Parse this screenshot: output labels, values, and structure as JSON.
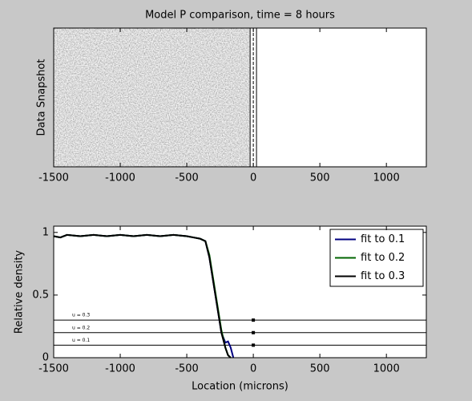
{
  "chart_data": [
    {
      "type": "image",
      "title": "Model P comparison, time = 8 hours",
      "ylabel": "Data Snapshot",
      "xlim": [
        -1500,
        1300
      ],
      "xticks": [
        -1500,
        -1000,
        -500,
        0,
        500,
        1000
      ],
      "vlines": [
        -24,
        0,
        24
      ]
    },
    {
      "type": "line",
      "ylabel": "Relative density",
      "xlabel": "Location (microns)",
      "xlim": [
        -1500,
        1300
      ],
      "xticks": [
        -1500,
        -1000,
        -500,
        0,
        500,
        1000
      ],
      "ylim": [
        0,
        1.05
      ],
      "yticks": [
        0,
        0.5,
        1
      ],
      "legend": "upper right",
      "x": [
        -1500,
        -1450,
        -1400,
        -1300,
        -1200,
        -1100,
        -1000,
        -900,
        -800,
        -700,
        -600,
        -500,
        -450,
        -400,
        -360,
        -330,
        -300,
        -270,
        -240,
        -210,
        -190,
        -170,
        -150,
        -130
      ],
      "series": [
        {
          "name": "fit to 0.1",
          "color": "#000080",
          "values": [
            0.97,
            0.96,
            0.98,
            0.97,
            0.98,
            0.97,
            0.98,
            0.97,
            0.98,
            0.97,
            0.98,
            0.97,
            0.96,
            0.95,
            0.93,
            0.8,
            0.6,
            0.4,
            0.2,
            0.12,
            0.13,
            0.08,
            0,
            null
          ]
        },
        {
          "name": "fit to 0.2",
          "color": "#006400",
          "values": [
            0.97,
            0.96,
            0.98,
            0.97,
            0.98,
            0.97,
            0.98,
            0.97,
            0.98,
            0.97,
            0.98,
            0.97,
            0.96,
            0.95,
            0.93,
            0.82,
            0.62,
            0.42,
            0.22,
            0.08,
            0.02,
            0,
            null,
            null
          ]
        },
        {
          "name": "fit to 0.3",
          "color": "#000000",
          "values": [
            0.97,
            0.96,
            0.98,
            0.97,
            0.98,
            0.97,
            0.98,
            0.97,
            0.98,
            0.97,
            0.98,
            0.97,
            0.96,
            0.95,
            0.93,
            0.8,
            0.6,
            0.4,
            0.2,
            0.08,
            0.02,
            0,
            null,
            null
          ]
        }
      ],
      "thresholds": {
        "values": [
          0.3,
          0.2,
          0.1
        ],
        "labels": [
          "u = 0.3",
          "u = 0.2",
          "u = 0.1"
        ]
      },
      "markers": {
        "x": [
          0,
          0,
          0
        ],
        "y": [
          0.3,
          0.2,
          0.1
        ]
      }
    }
  ]
}
